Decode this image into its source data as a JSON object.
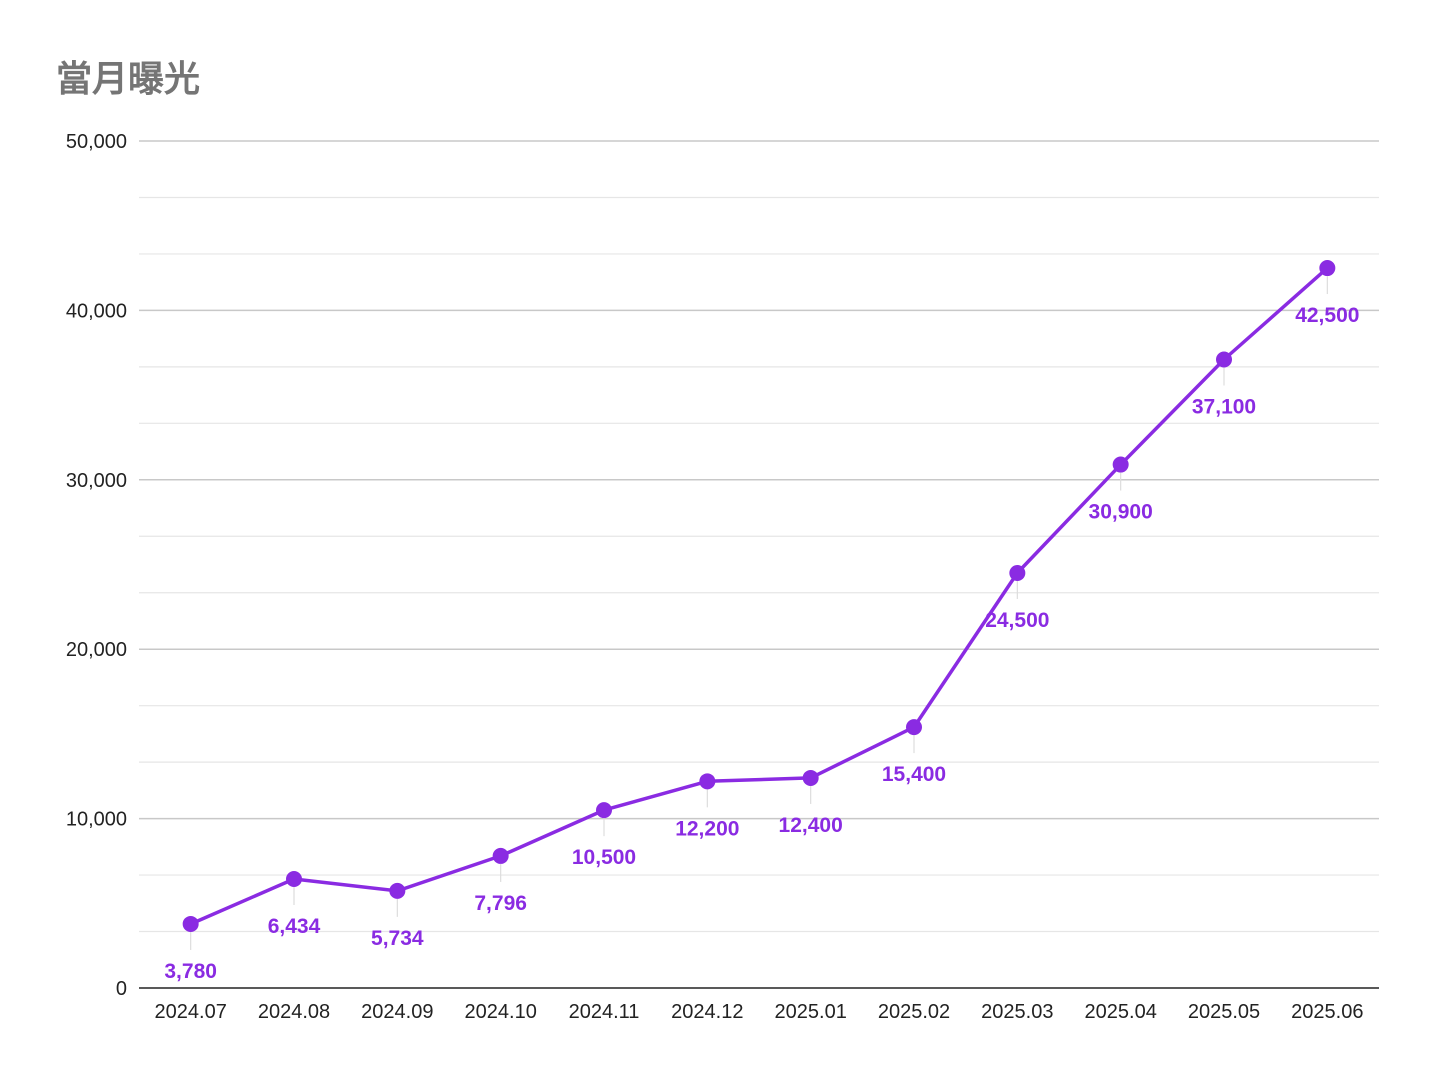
{
  "chart_data": {
    "type": "line",
    "title": "當月曝光",
    "xlabel": "",
    "ylabel": "",
    "categories": [
      "2024.07",
      "2024.08",
      "2024.09",
      "2024.10",
      "2024.11",
      "2024.12",
      "2025.01",
      "2025.02",
      "2025.03",
      "2025.04",
      "2025.05",
      "2025.06"
    ],
    "series": [
      {
        "values": [
          3780,
          6434,
          5734,
          7796,
          10500,
          12200,
          12400,
          15400,
          24500,
          30900,
          37100,
          42500
        ]
      }
    ],
    "data_labels": [
      "3,780",
      "6,434",
      "5,734",
      "7,796",
      "10,500",
      "12,200",
      "12,400",
      "15,400",
      "24,500",
      "30,900",
      "37,100",
      "42,500"
    ],
    "ylim": [
      0,
      50000
    ],
    "yticks": [
      0,
      10000,
      20000,
      30000,
      40000,
      50000
    ],
    "ytick_labels": [
      "0",
      "10,000",
      "20,000",
      "30,000",
      "40,000",
      "50,000"
    ],
    "grid": true,
    "legend": "none",
    "colors": {
      "series": "#8a2be2",
      "major_grid": "#c8c8c8",
      "minor_grid": "#e6e6e6",
      "axis": "#222222"
    }
  }
}
